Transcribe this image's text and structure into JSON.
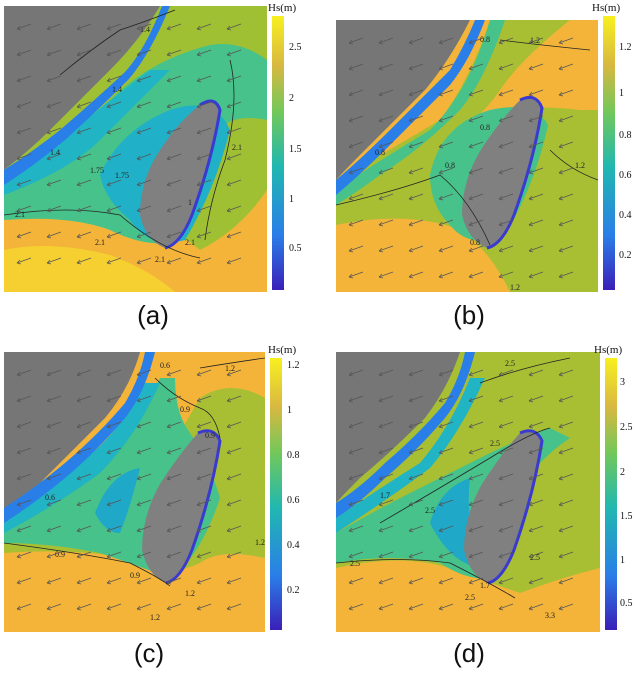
{
  "panels": [
    {
      "label": "(a)",
      "colorbar_title": "Hs(m)",
      "ticks": [
        "2.5",
        "2",
        "1.5",
        "1",
        "0.5"
      ],
      "contour_labels": [
        "1.4",
        "1.4",
        "2.1",
        "1.75",
        "1.4",
        "2.1",
        "2.1",
        "2.1",
        "1",
        "1.75",
        "2.1"
      ]
    },
    {
      "label": "(b)",
      "colorbar_title": "Hs(m)",
      "ticks": [
        "1.2",
        "1",
        "0.8",
        "0.6",
        "0.4",
        "0.2"
      ],
      "contour_labels": [
        "0.8",
        "1.2",
        "0.8",
        "0.8",
        "1.2",
        "0.8",
        "0.8",
        "1.2"
      ]
    },
    {
      "label": "(c)",
      "colorbar_title": "Hs(m)",
      "ticks": [
        "1.2",
        "1",
        "0.8",
        "0.6",
        "0.4",
        "0.2"
      ],
      "contour_labels": [
        "0.6",
        "0.9",
        "1.2",
        "0.9",
        "0.6",
        "0.9",
        "0.9",
        "1.2",
        "1.2",
        "1.2"
      ]
    },
    {
      "label": "(d)",
      "colorbar_title": "Hs(m)",
      "ticks": [
        "3",
        "2.5",
        "2",
        "1.5",
        "1",
        "0.5"
      ],
      "contour_labels": [
        "2.5",
        "1.7",
        "2.5",
        "2.5",
        "2.5",
        "1.7",
        "2.5",
        "2.5",
        "3.3"
      ]
    }
  ],
  "colors": {
    "land": "#808080",
    "deep_blue": "#3a3ad0",
    "blue": "#2a7ee8",
    "cyan": "#20b2c8",
    "green": "#43c08a",
    "olive": "#a8bf34",
    "orange": "#f4b43a",
    "yellow": "#f8e030"
  }
}
